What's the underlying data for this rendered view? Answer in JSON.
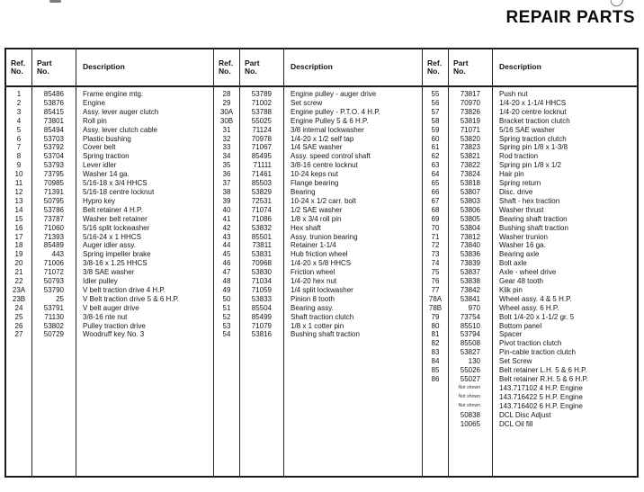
{
  "page": {
    "title": "REPAIR PARTS"
  },
  "table": {
    "header": {
      "ref_l1": "Ref.",
      "ref_l2": "No.",
      "part_l1": "Part",
      "part_l2": "No.",
      "desc": "Description"
    },
    "groups": [
      {
        "rows": [
          [
            "1",
            "85486",
            "Frame engine mtg."
          ],
          [
            "2",
            "53876",
            "Engine"
          ],
          [
            "3",
            "85415",
            "Assy. lever auger clutch"
          ],
          [
            "4",
            "73801",
            "Roll pin"
          ],
          [
            "5",
            "85494",
            "Assy. lever clutch cable"
          ],
          [
            "6",
            "53703",
            "Plastic bushing"
          ],
          [
            "7",
            "53792",
            "Cover belt"
          ],
          [
            "8",
            "53704",
            "Spring traction"
          ],
          [
            "9",
            "53793",
            "Lever idler"
          ],
          [
            "10",
            "73795",
            "Washer 14 ga."
          ],
          [
            "11",
            "70985",
            "5/16-18 x 3/4 HHCS"
          ],
          [
            "12",
            "71391",
            "5/16-18 centre locknut"
          ],
          [
            "13",
            "50795",
            "Hypro key"
          ],
          [
            "14",
            "53786",
            "Belt retainer 4 H.P."
          ],
          [
            "15",
            "73787",
            "Washer belt retainer"
          ],
          [
            "16",
            "71060",
            "5/16 split lockwasher"
          ],
          [
            "17",
            "71393",
            "5/16-24 x 1 HHCS"
          ],
          [
            "18",
            "85489",
            "Auger idler assy."
          ],
          [
            "19",
            "443",
            "Spring impeller brake"
          ],
          [
            "20",
            "71006",
            "3/8-16 x 1.25 HHCS"
          ],
          [
            "21",
            "71072",
            "3/8 SAE washer"
          ],
          [
            "22",
            "50793",
            "Idler pulley"
          ],
          [
            "23A",
            "53790",
            "V belt traction drive 4 H.P."
          ],
          [
            "23B",
            "25",
            "V Belt traction drive 5 & 6 H.P."
          ],
          [
            "24",
            "53791",
            "V belt auger drive"
          ],
          [
            "25",
            "71130",
            "3/8-16 nte nut"
          ],
          [
            "26",
            "53802",
            "Pulley traction drive"
          ],
          [
            "27",
            "50729",
            "Woodruff key No. 3"
          ]
        ]
      },
      {
        "rows": [
          [
            "28",
            "53789",
            "Engine pulley - auger drive"
          ],
          [
            "29",
            "71002",
            "Set screw"
          ],
          [
            "30A",
            "53788",
            "Engine pulley - P.T.O. 4 H.P."
          ],
          [
            "30B",
            "55025",
            "Engine Pulley 5 & 6 H.P."
          ],
          [
            "31",
            "71124",
            "3/8 internal lockwasher"
          ],
          [
            "32",
            "70978",
            "1/4-20 x 1/2 self tap"
          ],
          [
            "33",
            "71067",
            "1/4 SAE washer"
          ],
          [
            "34",
            "85495",
            "Assy. speed control shaft"
          ],
          [
            "35",
            "71111",
            "3/8-16 centre locknut"
          ],
          [
            "36",
            "71461",
            "10-24 keps nut"
          ],
          [
            "37",
            "85503",
            "Flange bearing"
          ],
          [
            "38",
            "53829",
            "Bearing"
          ],
          [
            "39",
            "72531",
            "10-24 x 1/2 carr. bolt"
          ],
          [
            "40",
            "71074",
            "1/2 SAE washer"
          ],
          [
            "41",
            "71086",
            "1/8 x 3/4 roll pin"
          ],
          [
            "42",
            "53832",
            "Hex shaft"
          ],
          [
            "43",
            "85501",
            "Assy. trunion bearing"
          ],
          [
            "44",
            "73811",
            "Retainer 1-1/4"
          ],
          [
            "45",
            "53831",
            "Hub friction wheel"
          ],
          [
            "46",
            "70968",
            "1/4-20 x 5/8 HHCS"
          ],
          [
            "47",
            "53830",
            "Friction wheel"
          ],
          [
            "48",
            "71034",
            "1/4-20 hex nut"
          ],
          [
            "49",
            "71059",
            "1/4 split lockwasher"
          ],
          [
            "50",
            "53833",
            "Pinion 8 tooth"
          ],
          [
            "51",
            "85504",
            "Bearing assy."
          ],
          [
            "52",
            "85499",
            "Shaft traction clutch"
          ],
          [
            "53",
            "71079",
            "1/8 x 1 cotter pin"
          ],
          [
            "54",
            "53816",
            "Bushing shaft traction"
          ]
        ]
      },
      {
        "rows": [
          [
            "55",
            "73817",
            "Push nut"
          ],
          [
            "56",
            "70970",
            "1/4-20 x 1-1/4 HHCS"
          ],
          [
            "57",
            "73826",
            "1/4-20 centre locknut"
          ],
          [
            "58",
            "53819",
            "Bracket traction clutch"
          ],
          [
            "59",
            "71071",
            "5/16 SAE washer"
          ],
          [
            "60",
            "53820",
            "Spring traction clutch"
          ],
          [
            "61",
            "73823",
            "Spring pin 1/8 x 1-3/8"
          ],
          [
            "62",
            "53821",
            "Rod traction"
          ],
          [
            "63",
            "73822",
            "Spring pin 1/8 x 1/2"
          ],
          [
            "64",
            "73824",
            "Hair pin"
          ],
          [
            "65",
            "53818",
            "Spring return"
          ],
          [
            "66",
            "53807",
            "Disc. drive"
          ],
          [
            "67",
            "53803",
            "Shaft - hex traction"
          ],
          [
            "68",
            "53806",
            "Washer thrust"
          ],
          [
            "69",
            "53805",
            "Bearing shaft traction"
          ],
          [
            "70",
            "53804",
            "Bushing shaft traction"
          ],
          [
            "71",
            "73812",
            "Washer trunion"
          ],
          [
            "72",
            "73840",
            "Washer 16 ga."
          ],
          [
            "73",
            "53836",
            "Bearing axle"
          ],
          [
            "74",
            "73839",
            "Bolt axle"
          ],
          [
            "75",
            "53837",
            "Axle - wheel drive"
          ],
          [
            "76",
            "53838",
            "Gear 48 tooth"
          ],
          [
            "77",
            "73842",
            "Klik pin"
          ],
          [
            "78A",
            "53841",
            "Wheel assy. 4 & 5 H.P."
          ],
          [
            "78B",
            "970",
            "Wheel assy. 6 H.P."
          ],
          [
            "79",
            "73754",
            "Bolt 1/4-20 x 1-1/2 gr. 5"
          ],
          [
            "80",
            "85510",
            "Bottom panel"
          ],
          [
            "81",
            "53794",
            "Spacer"
          ],
          [
            "82",
            "85508",
            "Pivot traction clutch"
          ],
          [
            "83",
            "53827",
            "Pin-cable traction clutch"
          ],
          [
            "84",
            "130",
            "Set Screw"
          ],
          [
            "85",
            "55026",
            "Belt retainer L.H. 5 & 6 H.P."
          ],
          [
            "86",
            "55027",
            "Belt retainer R.H. 5 & 6 H.P."
          ],
          [
            "",
            "Not shown",
            "143.717102 4 H.P. Engine"
          ],
          [
            "",
            "Not shown",
            "143.716422 5 H.P. Engine"
          ],
          [
            "",
            "Not shown",
            "143.716402 6 H.P. Engine"
          ],
          [
            "",
            "50838",
            "DCL Disc Adjust"
          ],
          [
            "",
            "10065",
            "DCL Oil fill"
          ]
        ]
      }
    ]
  }
}
